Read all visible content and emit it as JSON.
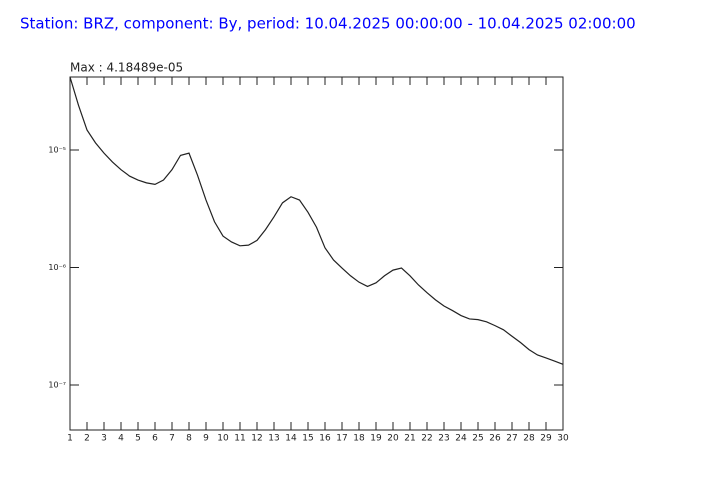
{
  "chart_data": {
    "type": "line",
    "title": "Station: BRZ, component: By, period: 10.04.2025 00:00:00 - 10.04.2025 02:00:00",
    "annotation": "Max : 4.18489e-05",
    "x": [
      1,
      1.5,
      2,
      2.5,
      3,
      3.5,
      4,
      4.5,
      5,
      5.5,
      6,
      6.5,
      7,
      7.5,
      8,
      8.5,
      9,
      9.5,
      10,
      10.5,
      11,
      11.5,
      12,
      12.5,
      13,
      13.5,
      14,
      14.5,
      15,
      15.5,
      16,
      16.5,
      17,
      17.5,
      18,
      18.5,
      19,
      19.5,
      20,
      20.5,
      21,
      21.5,
      22,
      22.5,
      23,
      23.5,
      24,
      24.5,
      25,
      25.5,
      26,
      26.5,
      27,
      27.5,
      28,
      28.5,
      29,
      29.5,
      30
    ],
    "values": [
      4.18e-05,
      2.4e-05,
      1.48e-05,
      1.15e-05,
      9.4e-06,
      7.9e-06,
      6.8e-06,
      6e-06,
      5.55e-06,
      5.25e-06,
      5.1e-06,
      5.55e-06,
      6.8e-06,
      9e-06,
      9.4e-06,
      6.1e-06,
      3.75e-06,
      2.45e-06,
      1.85e-06,
      1.65e-06,
      1.53e-06,
      1.55e-06,
      1.7e-06,
      2.1e-06,
      2.7e-06,
      3.55e-06,
      4e-06,
      3.75e-06,
      2.95e-06,
      2.2e-06,
      1.47e-06,
      1.16e-06,
      9.9e-07,
      8.5e-07,
      7.5e-07,
      6.9e-07,
      7.4e-07,
      8.5e-07,
      9.5e-07,
      9.9e-07,
      8.5e-07,
      7.1e-07,
      6.1e-07,
      5.3e-07,
      4.7e-07,
      4.3e-07,
      3.9e-07,
      3.65e-07,
      3.6e-07,
      3.45e-07,
      3.2e-07,
      2.95e-07,
      2.6e-07,
      2.3e-07,
      2e-07,
      1.8e-07,
      1.7e-07,
      1.6e-07,
      1.5e-07
    ],
    "color": "#222222",
    "title_color": "#0000ff",
    "xlim": [
      1,
      30
    ],
    "xticks": [
      1,
      2,
      3,
      4,
      5,
      6,
      7,
      8,
      9,
      10,
      11,
      12,
      13,
      14,
      15,
      16,
      17,
      18,
      19,
      20,
      21,
      22,
      23,
      24,
      25,
      26,
      27,
      28,
      29,
      30
    ],
    "ylog": true,
    "ylim": [
      4.14e-08,
      4.18e-05
    ],
    "yticks": [
      {
        "value": 1e-07,
        "label": "10⁻⁷"
      },
      {
        "value": 1e-06,
        "label": "10⁻⁶"
      },
      {
        "value": 1e-05,
        "label": "10⁻⁵"
      }
    ]
  }
}
